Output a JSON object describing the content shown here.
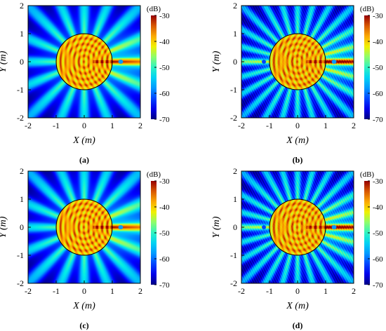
{
  "chart_data": [
    {
      "type": "heatmap",
      "panel_label": "(a)",
      "xlabel": "X (m)",
      "ylabel": "Y (m)",
      "xlim": [
        -2,
        2
      ],
      "ylim": [
        -2,
        2
      ],
      "xticks": [
        -2,
        -1,
        0,
        1,
        2
      ],
      "yticks": [
        -2,
        -1,
        0,
        1,
        2
      ],
      "colorbar": {
        "unit": "(dB)",
        "range": [
          -70,
          -30
        ],
        "ticks": [
          -30,
          -40,
          -50,
          -60,
          -70
        ]
      },
      "field": {
        "circle_radius_m": 1.0,
        "circle_center": [
          0,
          0
        ],
        "source_x": 1.3,
        "style": "smooth"
      }
    },
    {
      "type": "heatmap",
      "panel_label": "(b)",
      "xlabel": "X (m)",
      "ylabel": "Y (m)",
      "xlim": [
        -2,
        2
      ],
      "ylim": [
        -2,
        2
      ],
      "xticks": [
        -2,
        -1,
        0,
        1,
        2
      ],
      "yticks": [
        -2,
        -1,
        0,
        1,
        2
      ],
      "colorbar": {
        "unit": "(dB)",
        "range": [
          -70,
          -30
        ],
        "ticks": [
          -30,
          -40,
          -50,
          -60,
          -70
        ]
      },
      "field": {
        "circle_radius_m": 1.0,
        "circle_center": [
          0,
          0
        ],
        "source_x": 1.3,
        "style": "speckled"
      }
    },
    {
      "type": "heatmap",
      "panel_label": "(c)",
      "xlabel": "X (m)",
      "ylabel": "Y (m)",
      "xlim": [
        -2,
        2
      ],
      "ylim": [
        -2,
        2
      ],
      "xticks": [
        -2,
        -1,
        0,
        1,
        2
      ],
      "yticks": [
        -2,
        -1,
        0,
        1,
        2
      ],
      "colorbar": {
        "unit": "(dB)",
        "range": [
          -70,
          -30
        ],
        "ticks": [
          -30,
          -40,
          -50,
          -60,
          -70
        ]
      },
      "field": {
        "circle_radius_m": 1.0,
        "circle_center": [
          0,
          0
        ],
        "source_x": 1.3,
        "style": "smooth"
      }
    },
    {
      "type": "heatmap",
      "panel_label": "(d)",
      "xlabel": "X (m)",
      "ylabel": "Y (m)",
      "xlim": [
        -2,
        2
      ],
      "ylim": [
        -2,
        2
      ],
      "xticks": [
        -2,
        -1,
        0,
        1,
        2
      ],
      "yticks": [
        -2,
        -1,
        0,
        1,
        2
      ],
      "colorbar": {
        "unit": "(dB)",
        "range": [
          -70,
          -30
        ],
        "ticks": [
          -30,
          -40,
          -50,
          -60,
          -70
        ]
      },
      "field": {
        "circle_radius_m": 1.0,
        "circle_center": [
          0,
          0
        ],
        "source_x": 1.3,
        "style": "speckled"
      }
    }
  ]
}
